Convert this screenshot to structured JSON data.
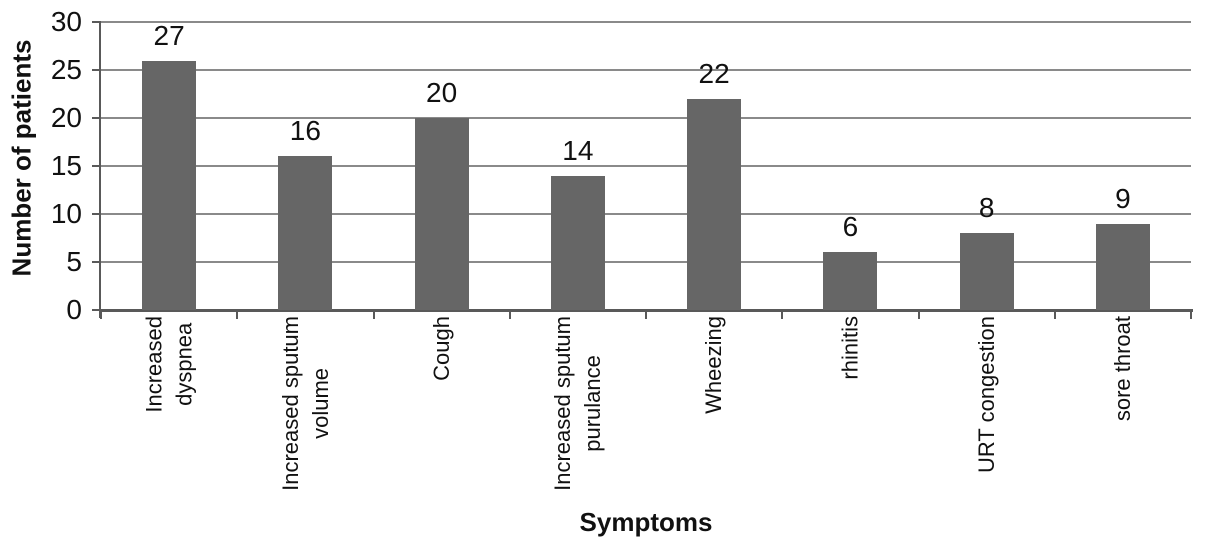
{
  "chart_data": {
    "type": "bar",
    "title": "",
    "categories": [
      "Increased\ndyspnea",
      "Increased sputum\nvolume",
      "Cough",
      "Increased sputum\npurulance",
      "Wheezing",
      "rhinitis",
      "URT congestion",
      "sore throat"
    ],
    "values": [
      27,
      16,
      20,
      14,
      22,
      6,
      8,
      9
    ],
    "xlabel": "Symptoms",
    "ylabel": "Number of patients",
    "ylim": [
      0,
      30
    ],
    "yticks": [
      0,
      5,
      10,
      15,
      20,
      25,
      30
    ],
    "grid": true,
    "legend": "none",
    "bar_color": "#666666",
    "gridline_color": "#8a8a8a",
    "axis_color": "#595959",
    "text_color": "#111111"
  }
}
